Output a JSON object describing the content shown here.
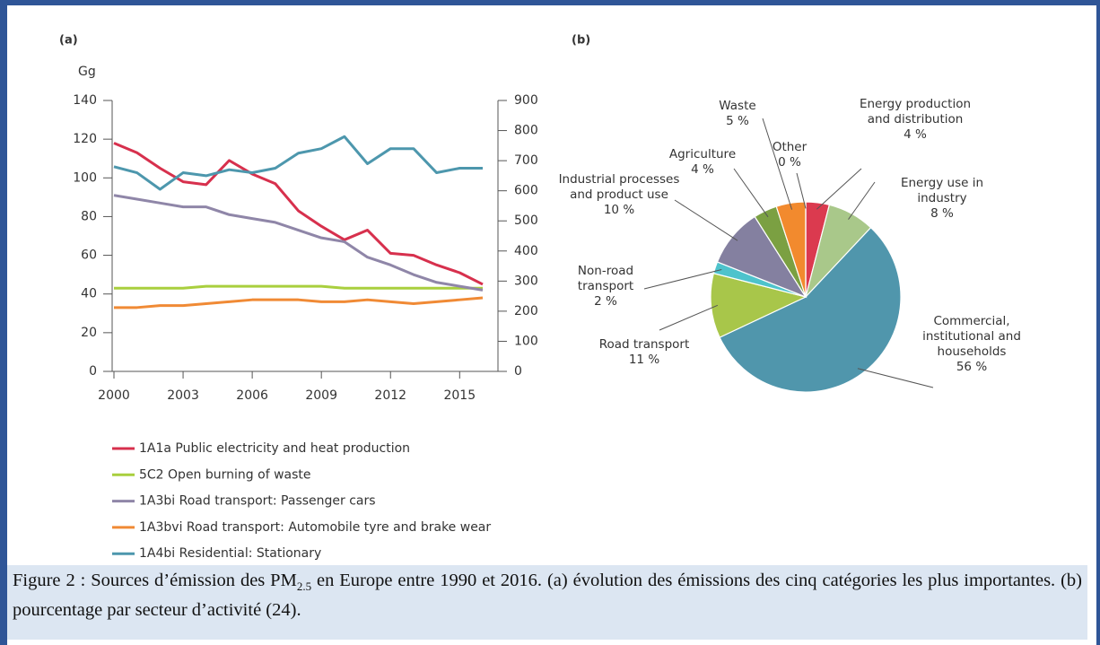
{
  "chart_data": [
    {
      "type": "line",
      "panel": "(a)",
      "ylabel": "Gg",
      "x": [
        2000,
        2001,
        2002,
        2003,
        2004,
        2005,
        2006,
        2007,
        2008,
        2009,
        2010,
        2011,
        2012,
        2013,
        2014,
        2015,
        2016
      ],
      "xlim": [
        2000,
        2016
      ],
      "xticks": [
        2000,
        2003,
        2006,
        2009,
        2012,
        2015
      ],
      "ylim": [
        0,
        140
      ],
      "yticks": [
        0,
        20,
        40,
        60,
        80,
        100,
        120,
        140
      ],
      "y2lim": [
        0,
        900
      ],
      "y2ticks": [
        0,
        100,
        200,
        300,
        400,
        500,
        600,
        700,
        800,
        900
      ],
      "series": [
        {
          "name": "1A1a Public electricity and heat production",
          "color": "#d7304d",
          "values": [
            118,
            113,
            105,
            98,
            96.5,
            109,
            102,
            97,
            83,
            75,
            68,
            73,
            61,
            60,
            55,
            51,
            45
          ]
        },
        {
          "name": "5C2 Open burning of waste",
          "color": "#a9cf3e",
          "values": [
            43,
            43,
            43,
            43,
            44,
            44,
            44,
            44,
            44,
            44,
            43,
            43,
            43,
            43,
            43,
            43,
            43
          ]
        },
        {
          "name": "1A3bi Road transport: Passenger cars",
          "color": "#8f86a8",
          "values": [
            91,
            89,
            87,
            85,
            85,
            81,
            79,
            77,
            73,
            69,
            67,
            59,
            55,
            50,
            46,
            44,
            42
          ]
        },
        {
          "name": "1A3bvi Road transport: Automobile tyre and brake wear",
          "color": "#f08a35",
          "values": [
            33,
            33,
            34,
            34,
            35,
            36,
            37,
            37,
            37,
            36,
            36,
            37,
            36,
            35,
            36,
            37,
            38
          ]
        },
        {
          "name": "1A4bi Residential: Stationary",
          "color": "#4d97ad",
          "axis": "y2",
          "values": [
            680,
            660,
            605,
            660,
            650,
            670,
            660,
            675,
            725,
            740,
            780,
            690,
            740,
            740,
            660,
            675,
            675
          ]
        }
      ]
    },
    {
      "type": "pie",
      "panel": "(b)",
      "categories": [
        "Energy production and distribution",
        "Energy use in industry",
        "Commercial, institutional and households",
        "Road transport",
        "Non-road transport",
        "Industrial processes and product use",
        "Agriculture",
        "Waste",
        "Other"
      ],
      "values": [
        4,
        8,
        56,
        11,
        2,
        10,
        4,
        5,
        0
      ],
      "value_labels": [
        "4 %",
        "8 %",
        "56 %",
        "11 %",
        "2 %",
        "10 %",
        "4 %",
        "5 %",
        "0 %"
      ],
      "colors": [
        "#db3a4f",
        "#a9c88a",
        "#5096ac",
        "#a8c64a",
        "#4ec3cc",
        "#8480a0",
        "#7ba042",
        "#f28a2e",
        "#aaaaaa"
      ]
    }
  ],
  "caption": {
    "before": "Figure 2 : Sources d’émission des PM",
    "sub": "2.5",
    "after": " en Europe entre 1990 et 2016. (a) évolution des émissions des cinq catégories les plus importantes. (b) pourcentage par secteur d’activité (24)."
  }
}
